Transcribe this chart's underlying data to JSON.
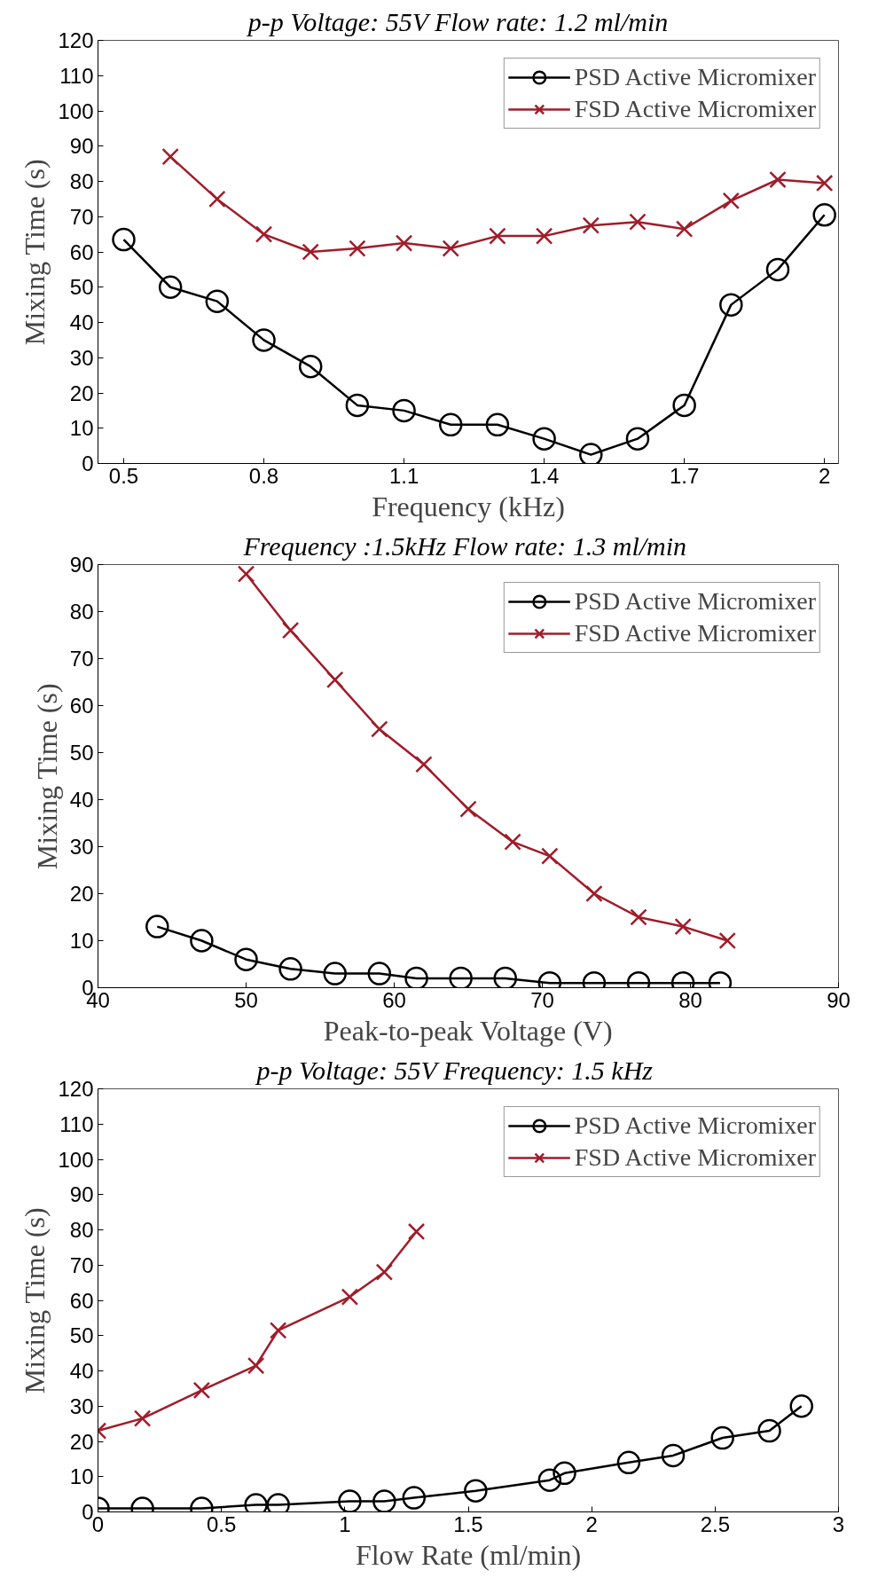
{
  "chart_data": [
    {
      "type": "line",
      "title": "p-p Voltage: 55V    Flow rate: 1.2 ml/min",
      "xlabel": "Frequency (kHz)",
      "ylabel": "Mixing Time (s)",
      "xlim": [
        0.445,
        2.03
      ],
      "xticks": [
        0.5,
        0.8,
        1.1,
        1.4,
        1.7,
        2
      ],
      "ylim": [
        0,
        120
      ],
      "yticks": [
        0,
        10,
        20,
        30,
        40,
        50,
        60,
        70,
        80,
        90,
        100,
        110,
        120
      ],
      "grid": false,
      "legend": "top right",
      "series": [
        {
          "name": "PSD Active Micromixer",
          "color": "#000000",
          "marker": "circle",
          "x": [
            0.5,
            0.6,
            0.7,
            0.8,
            0.9,
            1.0,
            1.1,
            1.2,
            1.3,
            1.4,
            1.5,
            1.6,
            1.7,
            1.8,
            1.9,
            2.0
          ],
          "values": [
            63.5,
            50,
            46,
            35,
            27.5,
            16.5,
            15,
            11,
            11,
            7,
            2.5,
            7,
            16.5,
            45,
            55,
            70.5
          ]
        },
        {
          "name": "FSD Active Micromixer",
          "color": "#a01c2a",
          "marker": "cross",
          "x": [
            0.6,
            0.7,
            0.8,
            0.9,
            1.0,
            1.1,
            1.2,
            1.3,
            1.4,
            1.5,
            1.6,
            1.7,
            1.8,
            1.9,
            2.0
          ],
          "values": [
            87,
            75,
            65,
            60,
            61,
            62.5,
            61,
            64.5,
            64.5,
            67.5,
            68.5,
            66.5,
            74.5,
            80.5,
            79.5
          ]
        }
      ]
    },
    {
      "type": "line",
      "title": "Frequency :1.5kHz  Flow rate: 1.3 ml/min",
      "xlabel": "Peak-to-peak Voltage (V)",
      "ylabel": "Mixing Time (s)",
      "xlim": [
        40,
        90
      ],
      "xticks": [
        40,
        50,
        60,
        70,
        80,
        90
      ],
      "ylim": [
        0,
        90
      ],
      "yticks": [
        0,
        10,
        20,
        30,
        40,
        50,
        60,
        70,
        80,
        90
      ],
      "grid": false,
      "legend": "top right",
      "series": [
        {
          "name": "PSD Active Micromixer",
          "color": "#000000",
          "marker": "circle",
          "x": [
            44,
            47,
            50,
            53,
            56,
            59,
            61.5,
            64.5,
            67.5,
            70.5,
            73.5,
            76.5,
            79.5,
            82
          ],
          "values": [
            13,
            10,
            6,
            4,
            3,
            3,
            2,
            2,
            2,
            1,
            1,
            1,
            1,
            1
          ]
        },
        {
          "name": "FSD Active Micromixer",
          "color": "#a01c2a",
          "marker": "cross",
          "x": [
            50,
            53,
            56,
            59,
            62,
            65,
            68,
            70.5,
            73.5,
            76.5,
            79.5,
            82.5
          ],
          "values": [
            88,
            76,
            65.5,
            55,
            47.5,
            38,
            31,
            28,
            20,
            15,
            13,
            10
          ]
        }
      ]
    },
    {
      "type": "line",
      "title": "p-p Voltage: 55V     Frequency: 1.5 kHz",
      "xlabel": "Flow Rate (ml/min)",
      "ylabel": "Mixing Time (s)",
      "xlim": [
        0,
        3
      ],
      "xticks": [
        0,
        0.5,
        1,
        1.5,
        2,
        2.5,
        3
      ],
      "ylim": [
        0,
        120
      ],
      "yticks": [
        0,
        10,
        20,
        30,
        40,
        50,
        60,
        70,
        80,
        90,
        100,
        110,
        120
      ],
      "grid": false,
      "legend": "top right",
      "series": [
        {
          "name": "PSD Active Micromixer",
          "color": "#000000",
          "marker": "circle",
          "x": [
            0,
            0.18,
            0.42,
            0.64,
            0.73,
            1.02,
            1.16,
            1.28,
            1.53,
            1.83,
            1.89,
            2.15,
            2.33,
            2.53,
            2.72,
            2.85
          ],
          "values": [
            1,
            1,
            1,
            2,
            2,
            3,
            3,
            4,
            6,
            9,
            11,
            14,
            16,
            21,
            23,
            30
          ]
        },
        {
          "name": "FSD Active Micromixer",
          "color": "#a01c2a",
          "marker": "cross",
          "x": [
            0,
            0.18,
            0.42,
            0.64,
            0.73,
            1.02,
            1.16,
            1.29
          ],
          "values": [
            23,
            26.5,
            34.5,
            41.5,
            51.5,
            61,
            68,
            79.5
          ]
        }
      ]
    }
  ]
}
